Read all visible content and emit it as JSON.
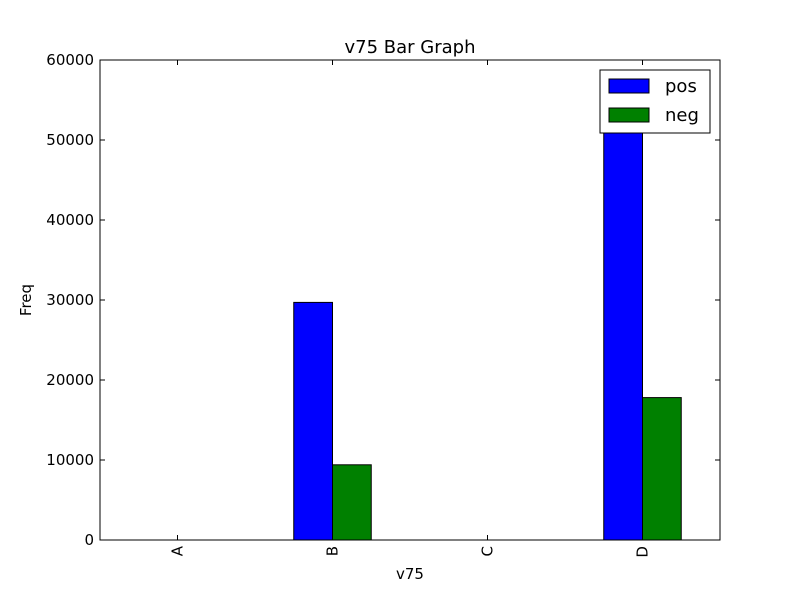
{
  "chart_data": {
    "type": "bar",
    "title": "v75 Bar Graph",
    "xlabel": "v75",
    "ylabel": "Freq",
    "categories": [
      "A",
      "B",
      "C",
      "D"
    ],
    "series": [
      {
        "name": "pos",
        "values": [
          0,
          29700,
          0,
          53900
        ],
        "color": "#0000ff"
      },
      {
        "name": "neg",
        "values": [
          0,
          9400,
          0,
          17800
        ],
        "color": "#008000"
      }
    ],
    "ylim": [
      0,
      60000
    ],
    "yticks": [
      0,
      10000,
      20000,
      30000,
      40000,
      50000,
      60000
    ],
    "ytick_labels": [
      "0",
      "10000",
      "20000",
      "30000",
      "40000",
      "50000",
      "60000"
    ],
    "grid": false,
    "legend_position": "upper-right"
  }
}
